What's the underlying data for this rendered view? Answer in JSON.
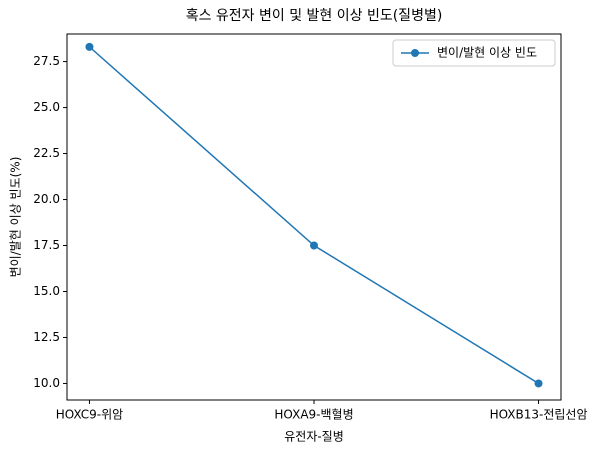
{
  "chart_data": {
    "type": "line",
    "title": "혹스 유전자 변이 및 발현 이상 빈도(질병별)",
    "x_label": "유전자-질병",
    "y_label": "변이/발현 이상 빈도(%)",
    "categories": [
      "HOXC9-위암",
      "HOXA9-백혈병",
      "HOXB13-전립선암"
    ],
    "series": [
      {
        "name": "변이/발현 이상 빈도",
        "color": "#1f77b4",
        "values": [
          28.3,
          17.5,
          10.0
        ]
      }
    ],
    "ylim": [
      9.1,
      29.0
    ],
    "yticks": [
      {
        "value": 10,
        "label": "10.0"
      },
      12.5,
      {
        "value": 15,
        "label": "15.0"
      },
      17.5,
      {
        "value": 20,
        "label": "20.0"
      },
      22.5,
      {
        "value": 25,
        "label": "25.0"
      },
      27.5
    ],
    "legend": "upper right",
    "grid": false
  }
}
